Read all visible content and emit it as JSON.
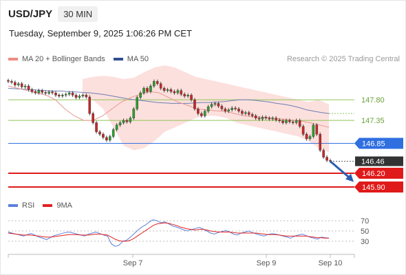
{
  "header": {
    "symbol": "USD/JPY",
    "timeframe": "30 MIN"
  },
  "datetime": "Tuesday, September 9, 2025 1:06:26 PM CET",
  "legend": {
    "items": [
      {
        "label": "MA 20 + Bollinger Bands",
        "color": "#f08a80"
      },
      {
        "label": "MA 50",
        "color": "#2f4f8f"
      }
    ]
  },
  "rsi_legend": {
    "items": [
      {
        "label": "RSI",
        "color": "#5b7fdc"
      },
      {
        "label": "9MA",
        "color": "#e02020"
      }
    ]
  },
  "copyright": "Research © 2025 Trading Central",
  "chart_data": [
    {
      "type": "candlestick",
      "title": "USD/JPY",
      "ylim": [
        145.75,
        148.55
      ],
      "x_ticks": [
        "Sep 7",
        "Sep 9",
        "Sep 10"
      ],
      "levels": [
        {
          "value": 147.8,
          "label": "147.80",
          "kind": "resistance",
          "color": "#8fc45a"
        },
        {
          "value": 147.35,
          "label": "147.35",
          "kind": "resistance",
          "color": "#8fc45a"
        },
        {
          "value": 146.85,
          "label": "146.85",
          "kind": "pivot",
          "color": "#2f6fe0"
        },
        {
          "value": 146.46,
          "label": "146.46",
          "kind": "last-price",
          "color": "#333333"
        },
        {
          "value": 146.2,
          "label": "146.20",
          "kind": "target",
          "color": "#e01a1a"
        },
        {
          "value": 145.9,
          "label": "145.90",
          "kind": "target",
          "color": "#e01a1a"
        }
      ],
      "close": [
        148.2,
        148.18,
        148.12,
        148.15,
        148.08,
        148.1,
        148.02,
        147.98,
        147.95,
        148.0,
        147.96,
        147.94,
        147.97,
        147.95,
        147.9,
        147.88,
        147.9,
        147.92,
        147.95,
        147.9,
        147.85,
        147.88,
        147.9,
        147.86,
        147.5,
        147.3,
        147.1,
        147.05,
        146.98,
        146.92,
        147.0,
        147.15,
        147.25,
        147.3,
        147.35,
        147.32,
        147.4,
        147.6,
        147.85,
        147.95,
        148.05,
        147.98,
        148.1,
        148.2,
        148.15,
        148.05,
        148.0,
        148.02,
        147.98,
        147.95,
        148.0,
        147.92,
        147.88,
        147.9,
        147.8,
        147.6,
        147.5,
        147.45,
        147.55,
        147.65,
        147.7,
        147.72,
        147.66,
        147.6,
        147.55,
        147.58,
        147.62,
        147.6,
        147.55,
        147.5,
        147.52,
        147.48,
        147.45,
        147.4,
        147.38,
        147.42,
        147.4,
        147.38,
        147.4,
        147.36,
        147.34,
        147.3,
        147.35,
        147.32,
        147.3,
        147.35,
        147.22,
        147.05,
        146.95,
        147.0,
        147.25,
        147.05,
        146.7,
        146.55,
        146.48,
        146.46
      ],
      "ma50": [
        148.05,
        148.04,
        148.03,
        148.02,
        148.01,
        148.0,
        147.99,
        147.99,
        147.98,
        147.97,
        147.96,
        147.95,
        147.93,
        147.91,
        147.88,
        147.85,
        147.82,
        147.8,
        147.78,
        147.76,
        147.74,
        147.73,
        147.72,
        147.72,
        147.72,
        147.73,
        147.74,
        147.74,
        147.75,
        147.76,
        147.78,
        147.8,
        147.8,
        147.79,
        147.77,
        147.75,
        147.72,
        147.7,
        147.67,
        147.63,
        147.58,
        147.55,
        147.52,
        147.5
      ],
      "ma20": [
        148.1,
        148.05,
        148.0,
        147.95,
        147.9,
        147.8,
        147.6,
        147.45,
        147.35,
        147.35,
        147.45,
        147.6,
        147.75,
        147.85,
        147.92,
        147.98,
        147.95,
        147.85,
        147.75,
        147.68,
        147.6,
        147.58,
        147.56,
        147.55,
        147.5,
        147.45,
        147.43,
        147.42,
        147.4,
        147.38,
        147.36,
        147.34,
        147.3,
        147.25,
        147.2
      ],
      "bb_upper": [
        148.25,
        148.3,
        148.32,
        148.3,
        148.25,
        148.28,
        148.4,
        148.5,
        148.55,
        148.5,
        148.4,
        148.3,
        148.25,
        148.2,
        148.15,
        148.1,
        148.05,
        148.0,
        147.95,
        147.9,
        147.85,
        147.8,
        147.75,
        147.8,
        147.7
      ],
      "bb_lower": [
        147.9,
        147.8,
        147.6,
        147.2,
        146.8,
        146.7,
        146.75,
        146.9,
        147.1,
        147.2,
        147.3,
        147.4,
        147.45,
        147.45,
        147.4,
        147.3,
        147.25,
        147.2,
        147.15,
        147.1,
        147.05,
        147.0,
        146.9,
        146.75,
        146.65
      ],
      "forecast": {
        "from": 146.46,
        "to": 146.1
      }
    },
    {
      "type": "line",
      "title": "RSI",
      "ylim": [
        15,
        85
      ],
      "y_ticks": [
        70,
        50,
        30
      ],
      "series": [
        {
          "name": "RSI",
          "color": "#5b7fdc",
          "values": [
            48,
            46,
            44,
            42,
            40,
            43,
            45,
            42,
            38,
            36,
            33,
            37,
            41,
            43,
            45,
            47,
            48,
            46,
            44,
            42,
            40,
            44,
            46,
            48,
            45,
            42,
            40,
            25,
            20,
            22,
            30,
            32,
            38,
            45,
            52,
            58,
            62,
            68,
            72,
            70,
            66,
            68,
            64,
            60,
            58,
            55,
            52,
            50,
            53,
            55,
            57,
            54,
            50,
            46,
            44,
            47,
            49,
            51,
            48,
            44,
            42,
            46,
            48,
            50,
            47,
            44,
            42,
            40,
            43,
            45,
            44,
            42,
            40,
            38,
            36,
            40,
            42,
            44,
            41,
            38,
            36,
            34,
            38,
            37,
            36
          ]
        },
        {
          "name": "9MA",
          "color": "#e02020",
          "values": [
            46,
            45,
            44,
            43,
            42,
            42,
            42,
            41,
            40,
            39,
            38,
            38,
            39,
            40,
            41,
            42,
            43,
            43,
            43,
            42,
            42,
            42,
            43,
            44,
            44,
            43,
            42,
            38,
            34,
            31,
            30,
            30,
            32,
            36,
            41,
            46,
            51,
            56,
            61,
            64,
            65,
            66,
            65,
            63,
            61,
            58,
            56,
            54,
            53,
            52,
            53,
            53,
            52,
            50,
            49,
            48,
            48,
            48,
            48,
            47,
            46,
            46,
            46,
            46,
            46,
            46,
            45,
            44,
            43,
            43,
            43,
            42,
            41,
            40,
            40,
            40,
            40,
            40,
            40,
            39,
            38,
            37,
            37,
            36,
            36
          ]
        }
      ]
    }
  ]
}
